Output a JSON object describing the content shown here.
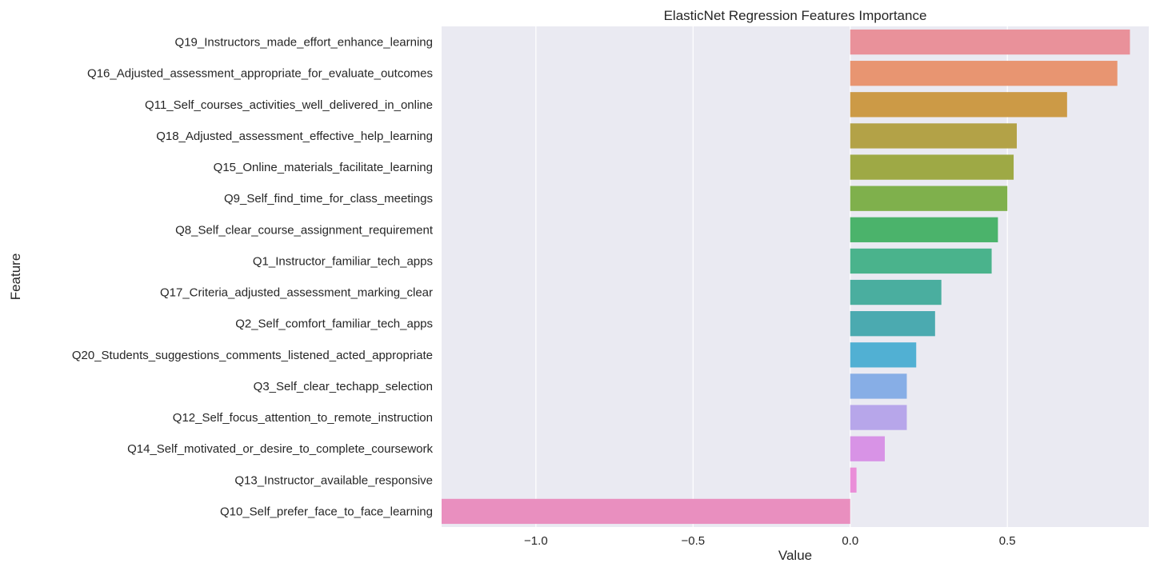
{
  "chart_data": {
    "type": "bar",
    "orientation": "horizontal",
    "title": "ElasticNet Regression Features Importance",
    "xlabel": "Value",
    "ylabel": "Feature",
    "xlim": [
      -1.3,
      0.95
    ],
    "xticks": [
      -1.0,
      -0.5,
      0.0,
      0.5
    ],
    "xtick_labels": [
      "−1.0",
      "−0.5",
      "0.0",
      "0.5"
    ],
    "grid": true,
    "background": "#eaeaf2",
    "categories": [
      "Q19_Instructors_made_effort_enhance_learning",
      "Q16_Adjusted_assessment_appropriate_for_evaluate_outcomes",
      "Q11_Self_courses_activities_well_delivered_in_online",
      "Q18_Adjusted_assessment_effective_help_learning",
      "Q15_Online_materials_facilitate_learning",
      "Q9_Self_find_time_for_class_meetings",
      "Q8_Self_clear_course_assignment_requirement",
      "Q1_Instructor_familiar_tech_apps",
      "Q17_Criteria_adjusted_assessment_marking_clear",
      "Q2_Self_comfort_familiar_tech_apps",
      "Q20_Students_suggestions_comments_listened_acted_appropriate",
      "Q3_Self_clear_techapp_selection",
      "Q12_Self_focus_attention_to_remote_instruction",
      "Q14_Self_motivated_or_desire_to_complete_coursework",
      "Q13_Instructor_available_responsive",
      "Q10_Self_prefer_face_to_face_learning"
    ],
    "values": [
      0.89,
      0.85,
      0.69,
      0.53,
      0.52,
      0.5,
      0.47,
      0.45,
      0.29,
      0.27,
      0.21,
      0.18,
      0.18,
      0.11,
      0.02,
      -1.3
    ],
    "colors": [
      "#e9919a",
      "#e89571",
      "#cc9a46",
      "#b3a247",
      "#9ea945",
      "#7fb04c",
      "#4bb36b",
      "#4ab38c",
      "#4aae9f",
      "#4baab0",
      "#51b0d3",
      "#87aee6",
      "#b7a6ea",
      "#d893e6",
      "#ea8ed8",
      "#e98fbf"
    ]
  }
}
